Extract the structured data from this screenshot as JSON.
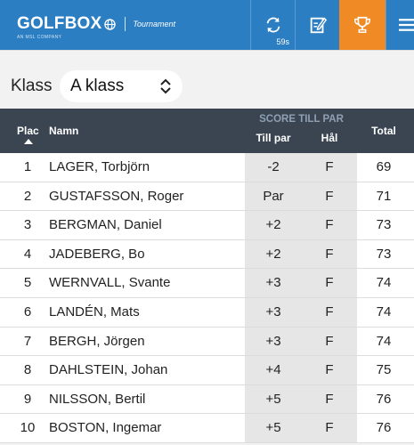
{
  "header": {
    "brand": "GOLFBOX",
    "brand_tag": "AN MSL COMPANY",
    "section": "Tournament",
    "refresh_countdown": "59s",
    "colors": {
      "bar": "#2c7ec3",
      "active": "#f08a24"
    },
    "icons": [
      "globe-icon",
      "refresh-icon",
      "scorecard-icon",
      "trophy-icon",
      "menu-icon"
    ]
  },
  "klass": {
    "label": "Klass",
    "selected": "A klass"
  },
  "table": {
    "columns": {
      "plac": "Plac",
      "namn": "Namn",
      "group": "SCORE TILL PAR",
      "tillpar": "Till par",
      "hal": "Hål",
      "total": "Total"
    },
    "rows": [
      {
        "plac": "1",
        "namn": "LAGER, Torbjörn",
        "tillpar": "-2",
        "hal": "F",
        "total": "69"
      },
      {
        "plac": "2",
        "namn": "GUSTAFSSON, Roger",
        "tillpar": "Par",
        "hal": "F",
        "total": "71"
      },
      {
        "plac": "3",
        "namn": "BERGMAN, Daniel",
        "tillpar": "+2",
        "hal": "F",
        "total": "73"
      },
      {
        "plac": "4",
        "namn": "JADEBERG, Bo",
        "tillpar": "+2",
        "hal": "F",
        "total": "73"
      },
      {
        "plac": "5",
        "namn": "WERNVALL, Svante",
        "tillpar": "+3",
        "hal": "F",
        "total": "74"
      },
      {
        "plac": "6",
        "namn": "LANDÉN, Mats",
        "tillpar": "+3",
        "hal": "F",
        "total": "74"
      },
      {
        "plac": "7",
        "namn": "BERGH, Jörgen",
        "tillpar": "+3",
        "hal": "F",
        "total": "74"
      },
      {
        "plac": "8",
        "namn": "DAHLSTEIN, Johan",
        "tillpar": "+4",
        "hal": "F",
        "total": "75"
      },
      {
        "plac": "9",
        "namn": "NILSSON, Bertil",
        "tillpar": "+5",
        "hal": "F",
        "total": "76"
      },
      {
        "plac": "10",
        "namn": "BOSTON, Ingemar",
        "tillpar": "+5",
        "hal": "F",
        "total": "76"
      }
    ]
  }
}
